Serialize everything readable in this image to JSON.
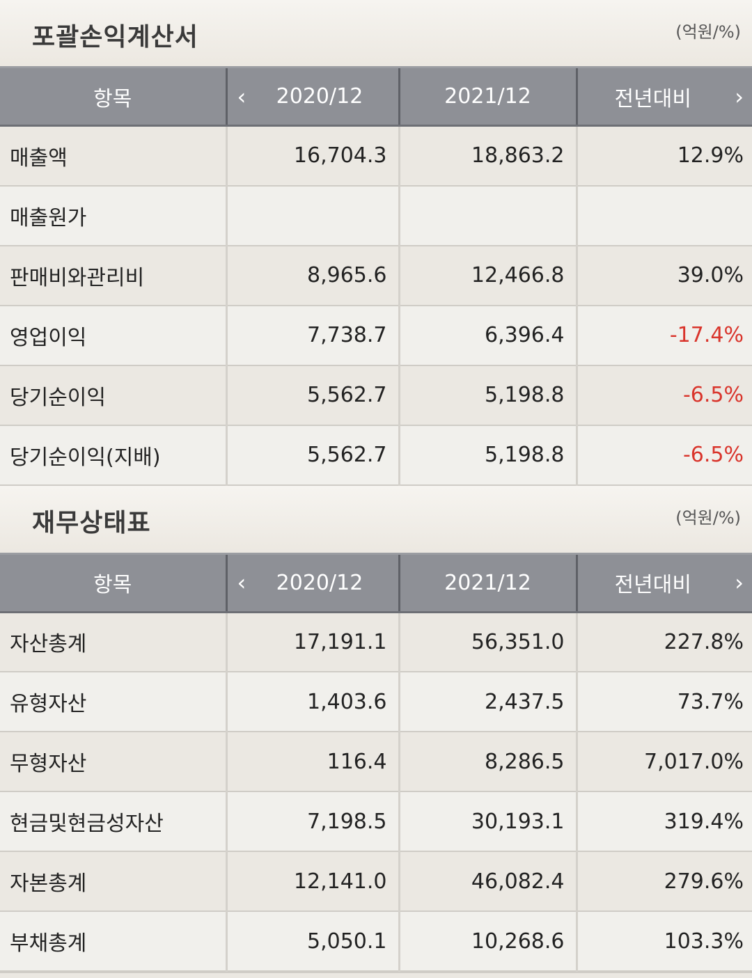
{
  "income_statement": {
    "title": "포괄손익계산서",
    "unit": "(억원/%)",
    "headers": {
      "item": "항목",
      "year1": "2020/12",
      "year2": "2021/12",
      "yoy": "전년대비"
    },
    "rows": [
      {
        "label": "매출액",
        "v1": "16,704.3",
        "v2": "18,863.2",
        "yoy": "12.9%"
      },
      {
        "label": "매출원가",
        "v1": "",
        "v2": "",
        "yoy": ""
      },
      {
        "label": "판매비와관리비",
        "v1": "8,965.6",
        "v2": "12,466.8",
        "yoy": "39.0%"
      },
      {
        "label": "영업이익",
        "v1": "7,738.7",
        "v2": "6,396.4",
        "yoy": "-17.4%"
      },
      {
        "label": "당기순이익",
        "v1": "5,562.7",
        "v2": "5,198.8",
        "yoy": "-6.5%"
      },
      {
        "label": "당기순이익(지배)",
        "v1": "5,562.7",
        "v2": "5,198.8",
        "yoy": "-6.5%"
      }
    ]
  },
  "balance_sheet": {
    "title": "재무상태표",
    "unit": "(억원/%)",
    "headers": {
      "item": "항목",
      "year1": "2020/12",
      "year2": "2021/12",
      "yoy": "전년대비"
    },
    "rows": [
      {
        "label": "자산총계",
        "v1": "17,191.1",
        "v2": "56,351.0",
        "yoy": "227.8%"
      },
      {
        "label": "유형자산",
        "v1": "1,403.6",
        "v2": "2,437.5",
        "yoy": "73.7%"
      },
      {
        "label": "무형자산",
        "v1": "116.4",
        "v2": "8,286.5",
        "yoy": "7,017.0%"
      },
      {
        "label": "현금및현금성자산",
        "v1": "7,198.5",
        "v2": "30,193.1",
        "yoy": "319.4%"
      },
      {
        "label": "자본총계",
        "v1": "12,141.0",
        "v2": "46,082.4",
        "yoy": "279.6%"
      },
      {
        "label": "부채총계",
        "v1": "5,050.1",
        "v2": "10,268.6",
        "yoy": "103.3%"
      }
    ]
  },
  "icons": {
    "prev": "chevron-left-icon",
    "next": "chevron-right-icon"
  },
  "colors": {
    "header_bg": "#8e9096",
    "negative": "#d9342b"
  }
}
